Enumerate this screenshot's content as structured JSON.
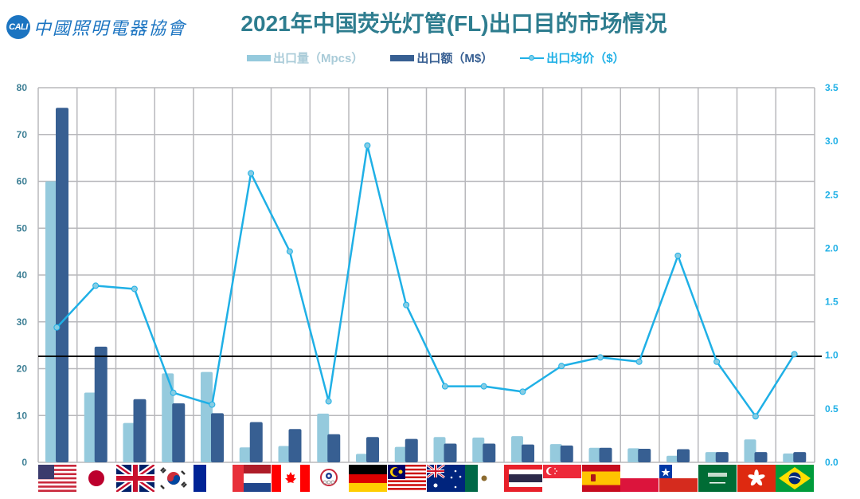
{
  "header": {
    "logo_mark": "CALI",
    "logo_text": "中國照明電器協會",
    "title": "2021年中国荧光灯管(FL)出口目的市场情况"
  },
  "legend": [
    {
      "label": "出口量（Mpcs）",
      "type": "bar",
      "color": "#95cadd"
    },
    {
      "label": "出口额（M$）",
      "type": "bar",
      "color": "#375f92"
    },
    {
      "label": "出口均价（$）",
      "type": "line",
      "color": "#1fb0e6"
    }
  ],
  "colors": {
    "volume": "#95cadd",
    "value": "#375f92",
    "price": "#1fb0e6",
    "grid": "#b8b8bc",
    "reference_line": "#000000",
    "left_axis_text": "#3d7f95",
    "right_axis_text": "#1fb0e6",
    "title": "#2e7d8f"
  },
  "chart_data": {
    "type": "bar+line",
    "title": "2021年中国荧光灯管(FL)出口目的市场情况",
    "categories": [
      "USA",
      "Japan",
      "UK",
      "South Korea",
      "France",
      "Netherlands",
      "Canada",
      "Chinese Taipei",
      "Germany",
      "Malaysia",
      "Australia",
      "Mexico",
      "Thailand",
      "Singapore",
      "Spain",
      "Poland",
      "Chile",
      "Saudi Arabia",
      "Hong Kong",
      "Brazil"
    ],
    "category_display": "country flags",
    "series": [
      {
        "name": "出口量（Mpcs）",
        "type": "bar",
        "axis": "left",
        "values": [
          60.0,
          14.9,
          8.4,
          19.0,
          19.3,
          3.2,
          3.5,
          10.4,
          1.8,
          3.3,
          5.4,
          5.3,
          5.6,
          3.9,
          3.1,
          3.0,
          1.4,
          2.2,
          4.9,
          1.9
        ]
      },
      {
        "name": "出口额（M$）",
        "type": "bar",
        "axis": "left",
        "values": [
          75.7,
          24.7,
          13.5,
          12.6,
          10.5,
          8.6,
          7.1,
          6.0,
          5.4,
          5.0,
          4.0,
          4.0,
          3.8,
          3.6,
          3.1,
          2.9,
          2.8,
          2.2,
          2.2,
          2.2
        ]
      },
      {
        "name": "出口均价（$）",
        "type": "line",
        "axis": "right",
        "values": [
          1.26,
          1.65,
          1.62,
          0.65,
          0.54,
          2.7,
          1.97,
          0.57,
          2.96,
          1.47,
          0.71,
          0.71,
          0.66,
          0.9,
          0.98,
          0.94,
          1.93,
          0.94,
          0.43,
          1.01
        ]
      }
    ],
    "left_axis": {
      "ylim": [
        0,
        80
      ],
      "ticks": [
        "0",
        "10",
        "20",
        "30",
        "40",
        "50",
        "60",
        "70",
        "80"
      ]
    },
    "right_axis": {
      "ylim": [
        0,
        3.5
      ],
      "ticks": [
        "0.0",
        "0.5",
        "1.0",
        "1.5",
        "2.0",
        "2.5",
        "3.0",
        "3.5"
      ]
    },
    "reference_line": {
      "axis": "right",
      "value": 0.99
    },
    "grid": true,
    "legend_position": "top"
  }
}
